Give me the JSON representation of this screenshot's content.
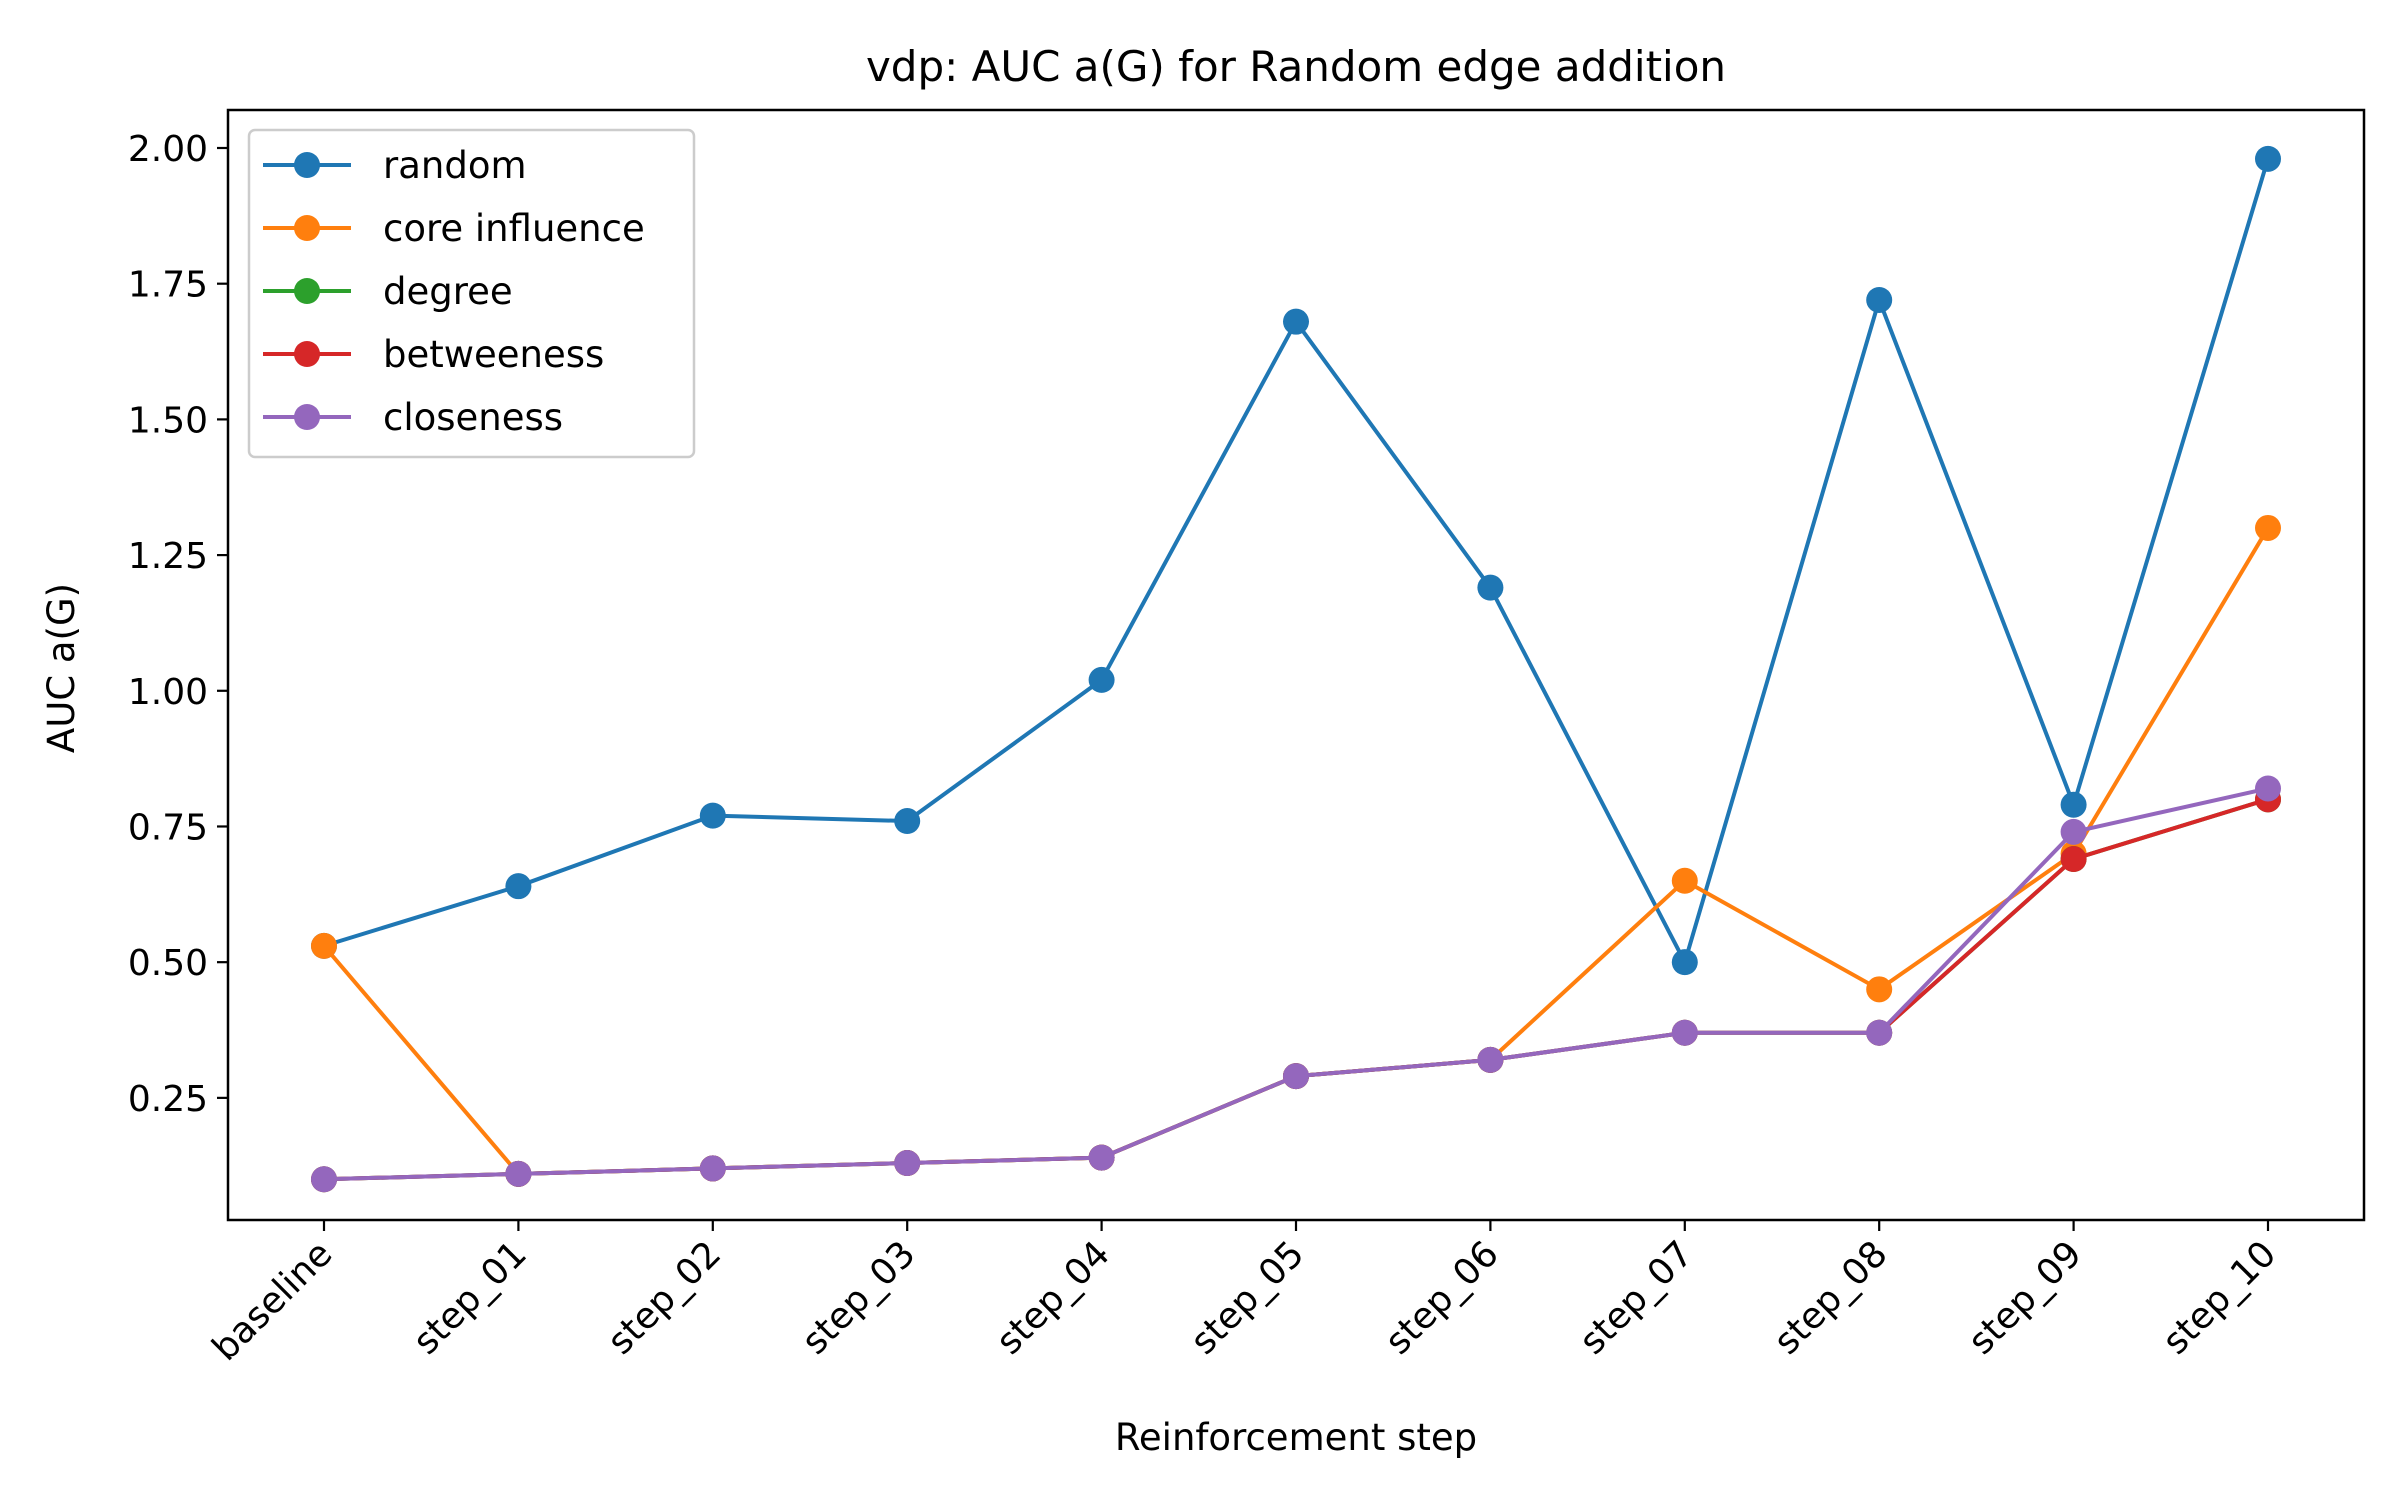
{
  "chart_data": {
    "type": "line",
    "title": "vdp: AUC a(G) for Random edge addition",
    "xlabel": "Reinforcement step",
    "ylabel": "AUC a(G)",
    "categories": [
      "baseline",
      "step_01",
      "step_02",
      "step_03",
      "step_04",
      "step_05",
      "step_06",
      "step_07",
      "step_08",
      "step_09",
      "step_10"
    ],
    "yticks": [
      "0.25",
      "0.50",
      "0.75",
      "1.00",
      "1.25",
      "1.50",
      "1.75",
      "2.00"
    ],
    "ylim": [
      0.025,
      2.07
    ],
    "grid": false,
    "legend_position": "top-left",
    "series": [
      {
        "name": "random",
        "color": "#1f77b4",
        "values": [
          0.53,
          0.64,
          0.77,
          0.76,
          1.02,
          1.68,
          1.19,
          0.5,
          1.72,
          0.79,
          1.98
        ]
      },
      {
        "name": "core influence",
        "color": "#ff7f0e",
        "values": [
          0.53,
          0.11,
          0.12,
          0.13,
          0.14,
          0.29,
          0.32,
          0.65,
          0.45,
          0.7,
          1.3
        ]
      },
      {
        "name": "degree",
        "color": "#2ca02c",
        "values": [
          0.1,
          0.11,
          0.12,
          0.13,
          0.14,
          0.29,
          0.32,
          0.37,
          0.37,
          0.69,
          0.8
        ]
      },
      {
        "name": "betweeness",
        "color": "#d62728",
        "values": [
          0.1,
          0.11,
          0.12,
          0.13,
          0.14,
          0.29,
          0.32,
          0.37,
          0.37,
          0.69,
          0.8
        ]
      },
      {
        "name": "closeness",
        "color": "#9467bd",
        "values": [
          0.1,
          0.11,
          0.12,
          0.13,
          0.14,
          0.29,
          0.32,
          0.37,
          0.37,
          0.74,
          0.82
        ]
      }
    ]
  }
}
